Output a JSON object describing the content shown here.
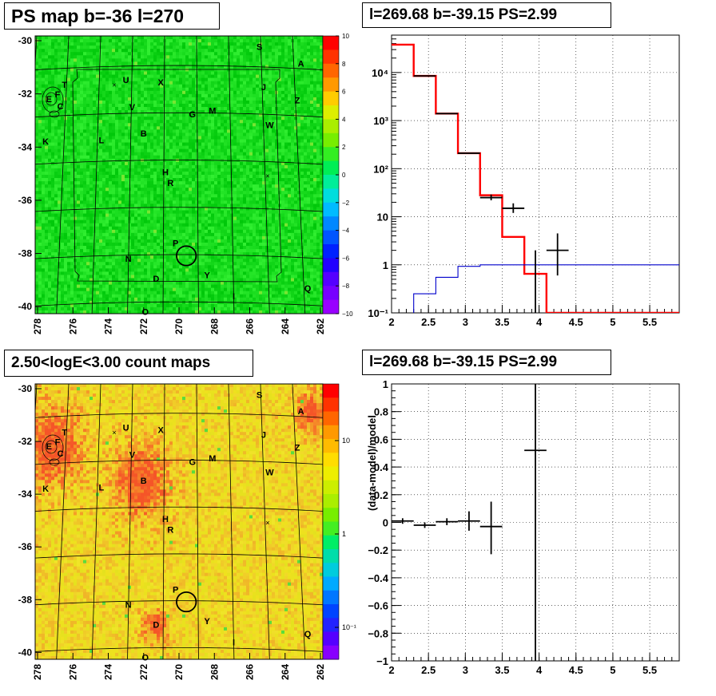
{
  "titles": {
    "top_left": "PS map b=-36 l=270",
    "top_right": "l=269.68 b=-39.15 PS=2.99",
    "bottom_left": "2.50<logE<3.00 count maps",
    "bottom_right": "l=269.68 b=-39.15 PS=2.99"
  },
  "maps": {
    "x_ticks": [
      "278",
      "276",
      "274",
      "272",
      "270",
      "268",
      "266",
      "264",
      "262"
    ],
    "y_ticks": [
      "-30",
      "-32",
      "-34",
      "-36",
      "-38",
      "-40"
    ],
    "sources": [
      {
        "label": "S",
        "l": 265.2,
        "b": -30.35
      },
      {
        "label": "A",
        "l": 262.7,
        "b": -31.05
      },
      {
        "label": "U",
        "l": 273.3,
        "b": -31.75
      },
      {
        "label": "X",
        "l": 271.2,
        "b": -31.85
      },
      {
        "label": "T",
        "l": 277.0,
        "b": -31.95
      },
      {
        "label": "J",
        "l": 265.0,
        "b": -32.05
      },
      {
        "label": "F",
        "l": 277.4,
        "b": -32.35
      },
      {
        "label": "E",
        "l": 277.9,
        "b": -32.55
      },
      {
        "label": "Z",
        "l": 263.0,
        "b": -32.6
      },
      {
        "label": "C",
        "l": 277.2,
        "b": -32.85
      },
      {
        "label": "V",
        "l": 272.9,
        "b": -32.9
      },
      {
        "label": "M",
        "l": 268.1,
        "b": -33.05
      },
      {
        "label": "G",
        "l": 269.3,
        "b": -33.2
      },
      {
        "label": "W",
        "l": 264.7,
        "b": -33.65
      },
      {
        "label": "B",
        "l": 272.2,
        "b": -34.0
      },
      {
        "label": "L",
        "l": 274.7,
        "b": -34.3
      },
      {
        "label": "K",
        "l": 278.0,
        "b": -34.35
      },
      {
        "label": "H",
        "l": 270.9,
        "b": -35.65
      },
      {
        "label": "R",
        "l": 270.6,
        "b": -36.1
      },
      {
        "label": "P",
        "l": 270.3,
        "b": -38.65
      },
      {
        "label": "N",
        "l": 273.0,
        "b": -39.3
      },
      {
        "label": "D",
        "l": 271.4,
        "b": -40.15
      },
      {
        "label": "Y",
        "l": 268.5,
        "b": -40.0
      },
      {
        "label": "Q",
        "l": 262.8,
        "b": -40.55
      },
      {
        "label": "I",
        "l": 267.0,
        "b": -40.9
      },
      {
        "label": "O",
        "l": 272.0,
        "b": -41.55
      }
    ],
    "target": {
      "l": 269.68,
      "b": -39.15,
      "radius_deg": 0.55
    },
    "extra_marks": [
      {
        "l": 274.0,
        "b": -31.95
      },
      {
        "l": 264.9,
        "b": -35.8
      }
    ]
  },
  "top_colorbar": {
    "min": -10,
    "max": 10,
    "ticks": [
      "10",
      "8",
      "6",
      "4",
      "2",
      "0",
      "−2",
      "−4",
      "−6",
      "−8",
      "−10"
    ]
  },
  "bottom_colorbar": {
    "scale": "log",
    "ticks": [
      "10",
      "1",
      "10⁻¹"
    ]
  },
  "chart_data": [
    {
      "type": "line",
      "title": "l=269.68 b=-39.15 PS=2.99",
      "xlabel": "",
      "ylabel": "",
      "xlim": [
        2,
        5.9
      ],
      "ylim": [
        0.1,
        60000
      ],
      "yscale": "log",
      "grid": true,
      "x_tick_labels": [
        "2",
        "2.5",
        "3",
        "3.5",
        "4",
        "4.5",
        "5",
        "5.5"
      ],
      "y_tick_labels": [
        "10⁻¹",
        "1",
        "10",
        "10²",
        "10³",
        "10⁴"
      ],
      "series": [
        {
          "color": "#ff0000",
          "style": "step",
          "bin_edges": [
            2.0,
            2.3,
            2.6,
            2.9,
            3.2,
            3.5,
            3.8,
            4.1,
            4.4,
            5.9
          ],
          "values": [
            38000,
            8500,
            1400,
            210,
            28,
            3.8,
            0.65,
            0.1,
            0.1
          ]
        },
        {
          "color": "#0000cc",
          "style": "step",
          "bin_edges": [
            2.0,
            2.3,
            2.6,
            2.9,
            3.2,
            3.5,
            3.8,
            4.1,
            5.9
          ],
          "values": [
            0.06,
            0.25,
            0.55,
            0.93,
            1.0,
            1.0,
            1.0,
            1.0
          ]
        },
        {
          "color": "#000000",
          "style": "points",
          "x": [
            2.45,
            2.75,
            3.05,
            3.35,
            3.65,
            3.95,
            4.25
          ],
          "y": [
            8500,
            1400,
            210,
            25,
            15,
            0.08,
            2.0
          ],
          "xerr": [
            0.15,
            0.15,
            0.15,
            0.15,
            0.15,
            0.15,
            0.15
          ],
          "ylo": [
            8450,
            1390,
            205,
            22,
            12,
            0.05,
            0.6
          ],
          "yhi": [
            8550,
            1410,
            215,
            29,
            19,
            2.0,
            4.5
          ]
        }
      ]
    },
    {
      "type": "scatter",
      "title": "l=269.68 b=-39.15 PS=2.99",
      "xlabel": "",
      "ylabel": "(data-model)/model",
      "xlim": [
        2,
        5.9
      ],
      "ylim": [
        -1,
        1
      ],
      "grid": true,
      "x_tick_labels": [
        "2",
        "2.5",
        "3",
        "3.5",
        "4",
        "4.5",
        "5",
        "5.5"
      ],
      "y_tick_labels": [
        "−1",
        "−0.8",
        "−0.6",
        "−0.4",
        "−0.2",
        "0",
        "0.2",
        "0.4",
        "0.6",
        "0.8",
        "1"
      ],
      "series": [
        {
          "color": "#000000",
          "x": [
            2.15,
            2.45,
            2.75,
            3.05,
            3.35,
            3.95
          ],
          "y": [
            0.01,
            -0.02,
            0.005,
            0.01,
            -0.03,
            0.52
          ],
          "xerr": [
            0.15,
            0.15,
            0.15,
            0.15,
            0.15,
            0.15
          ],
          "ylo": [
            -0.01,
            -0.04,
            -0.02,
            -0.06,
            -0.23,
            -1.0
          ],
          "yhi": [
            0.03,
            0.0,
            0.03,
            0.08,
            0.15,
            1.0
          ]
        }
      ]
    }
  ]
}
